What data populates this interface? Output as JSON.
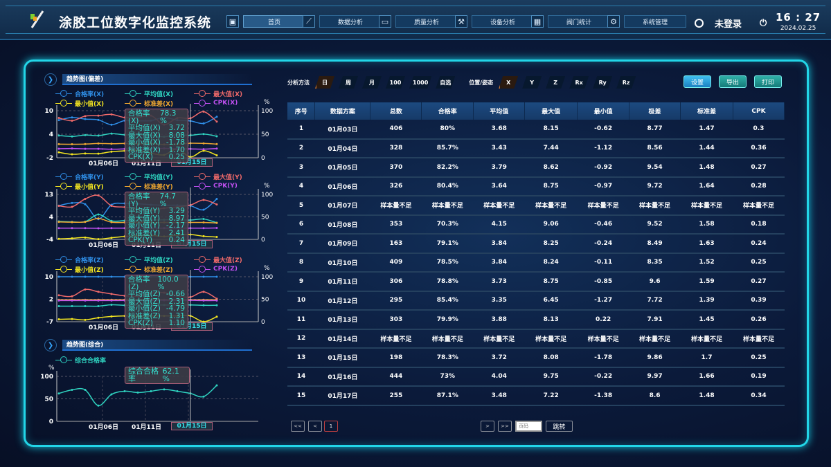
{
  "header": {
    "title": "涂胶工位数字化监控系统",
    "nav": [
      {
        "label": "首页",
        "icon": "dashboard-icon",
        "active": true
      },
      {
        "label": "数据分析",
        "icon": "line-chart-icon"
      },
      {
        "label": "质量分析",
        "icon": "monitor-icon"
      },
      {
        "label": "设备分析",
        "icon": "robot-arm-icon"
      },
      {
        "label": "阀门统计",
        "icon": "calculator-icon"
      },
      {
        "label": "系统管理",
        "icon": "gear-icon"
      }
    ],
    "user": "未登录",
    "time": "16 : 27",
    "date": "2024.02.25"
  },
  "colors": {
    "accent": "#22d6e8",
    "rate": "#2f8fe8",
    "avg": "#2fd3c0",
    "max": "#f06a6a",
    "min": "#f5e620",
    "std": "#f0a830",
    "cpk": "#c050f0"
  },
  "left": {
    "trend_title": "趋势图(偏差)",
    "combined_title": "趋势图(综合)"
  },
  "chart_data": [
    {
      "type": "line",
      "axis": "X",
      "ylim": [
        -2,
        10
      ],
      "yticks": [
        "10",
        "4",
        "-2"
      ],
      "y2lim": [
        0,
        100
      ],
      "y2ticks": [
        "100",
        "50",
        "0"
      ],
      "y2label": "%",
      "x": [
        "01月03日",
        "01月04日",
        "01月05日",
        "01月06日",
        "01月08日",
        "01月09日",
        "01月10日",
        "01月11日",
        "01月12日",
        "01月13日",
        "01月15日",
        "01月16日",
        "01月17日"
      ],
      "xticks": [
        "01月06日",
        "01月11日",
        "01月15日"
      ],
      "highlight": "01月15日",
      "series": [
        {
          "name": "合格率(X)",
          "key": "rate",
          "axis": "right",
          "values": [
            80,
            85.7,
            82.2,
            80.4,
            70.3,
            79.1,
            78.5,
            78.8,
            85.4,
            79.9,
            78.3,
            73,
            87.1
          ]
        },
        {
          "name": "平均值(X)",
          "key": "avg",
          "values": [
            3.68,
            3.43,
            3.79,
            3.64,
            4.15,
            3.84,
            3.84,
            3.73,
            3.35,
            3.88,
            3.72,
            4.04,
            3.48
          ]
        },
        {
          "name": "最大值(X)",
          "key": "max",
          "values": [
            8.15,
            7.44,
            8.62,
            8.75,
            9.06,
            8.25,
            8.24,
            8.75,
            6.45,
            8.13,
            8.08,
            9.75,
            7.22
          ]
        },
        {
          "name": "最小值(X)",
          "key": "min",
          "values": [
            -0.62,
            -1.12,
            -0.92,
            -0.97,
            -0.46,
            -0.24,
            -0.11,
            -0.85,
            -1.27,
            0.22,
            -1.78,
            -0.22,
            -1.38
          ]
        },
        {
          "name": "标准差(X)",
          "key": "std",
          "values": [
            1.47,
            1.44,
            1.48,
            1.64,
            1.58,
            1.63,
            1.52,
            1.59,
            1.39,
            1.45,
            1.7,
            1.66,
            1.48
          ]
        },
        {
          "name": "CPK(X)",
          "key": "cpk",
          "values": [
            0.3,
            0.36,
            0.27,
            0.28,
            0.18,
            0.24,
            0.25,
            0.27,
            0.39,
            0.26,
            0.25,
            0.19,
            0.34
          ]
        }
      ],
      "tooltip": [
        [
          "合格率(X)",
          "78.3 %"
        ],
        [
          "平均值(X)",
          "3.72"
        ],
        [
          "最大值(X)",
          "8.08"
        ],
        [
          "最小值(X)",
          "-1.78"
        ],
        [
          "标准差(X)",
          "1.70"
        ],
        [
          "CPK(X)",
          "0.25"
        ]
      ]
    },
    {
      "type": "line",
      "axis": "Y",
      "ylim": [
        -4,
        13
      ],
      "yticks": [
        "13",
        "4",
        "-4"
      ],
      "y2lim": [
        0,
        100
      ],
      "y2ticks": [
        "100",
        "50",
        "0"
      ],
      "y2label": "%",
      "x": [
        "01月03日",
        "01月04日",
        "01月05日",
        "01月06日",
        "01月08日",
        "01月09日",
        "01月10日",
        "01月11日",
        "01月12日",
        "01月13日",
        "01月15日",
        "01月16日",
        "01月17日"
      ],
      "xticks": [
        "01月06日",
        "01月11日",
        "01月15日"
      ],
      "highlight": "01月15日",
      "series": [
        {
          "name": "合格率(Y)",
          "key": "rate",
          "axis": "right",
          "values": [
            75,
            81,
            78,
            45,
            77,
            80,
            79,
            77,
            76,
            76,
            74.7,
            66,
            90
          ]
        },
        {
          "name": "平均值(Y)",
          "key": "avg",
          "values": [
            2.8,
            2.6,
            2.7,
            5.4,
            3.0,
            3.1,
            3.2,
            3.3,
            3.4,
            3.4,
            3.29,
            3.7,
            2.3
          ]
        },
        {
          "name": "最大值(Y)",
          "key": "max",
          "values": [
            8.7,
            8.3,
            11.3,
            12.6,
            8.7,
            8.2,
            7.5,
            7.0,
            7.8,
            8.3,
            8.97,
            10.9,
            9.2
          ]
        },
        {
          "name": "最小值(Y)",
          "key": "min",
          "values": [
            -3.8,
            -3.6,
            -3.3,
            -3.9,
            -3.4,
            -2.9,
            -2.6,
            -2.5,
            -2.9,
            -2.4,
            -2.17,
            -2.8,
            -3.1
          ]
        },
        {
          "name": "标准差(Y)",
          "key": "std",
          "values": [
            2.6,
            2.5,
            2.6,
            3.9,
            2.5,
            2.4,
            2.5,
            2.4,
            2.4,
            2.4,
            2.41,
            2.4,
            2.2
          ]
        },
        {
          "name": "CPK(Y)",
          "key": "cpk",
          "values": [
            0.24,
            0.24,
            0.24,
            0.2,
            0.24,
            0.24,
            0.24,
            0.24,
            0.24,
            0.24,
            0.24,
            0.24,
            0.3
          ]
        }
      ],
      "tooltip": [
        [
          "合格率(Y)",
          "74.7 %"
        ],
        [
          "平均值(Y)",
          "3.29"
        ],
        [
          "最大值(Y)",
          "8.97"
        ],
        [
          "最小值(Y)",
          "-2.17"
        ],
        [
          "标准差(Y)",
          "2.41"
        ],
        [
          "CPK(Y)",
          "0.24"
        ]
      ]
    },
    {
      "type": "line",
      "axis": "Z",
      "ylim": [
        -7,
        10
      ],
      "yticks": [
        "10",
        "2",
        "-7"
      ],
      "y2lim": [
        0,
        100
      ],
      "y2ticks": [
        "100",
        "50",
        "0"
      ],
      "y2label": "%",
      "x": [
        "01月03日",
        "01月04日",
        "01月05日",
        "01月06日",
        "01月08日",
        "01月09日",
        "01月10日",
        "01月11日",
        "01月12日",
        "01月13日",
        "01月15日",
        "01月16日",
        "01月17日"
      ],
      "xticks": [
        "01月06日",
        "01月11日",
        "01月15日"
      ],
      "highlight": "01月15日",
      "series": [
        {
          "name": "合格率(Z)",
          "key": "rate",
          "axis": "right",
          "values": [
            100,
            100,
            100,
            100,
            100,
            100,
            100,
            100,
            100,
            100,
            100,
            100,
            100
          ]
        },
        {
          "name": "平均值(Z)",
          "key": "avg",
          "values": [
            -1.1,
            -1.1,
            -1.1,
            -1.1,
            -0.6,
            -0.8,
            -0.7,
            -0.7,
            -0.7,
            -0.7,
            -0.66,
            -0.8,
            -0.8
          ]
        },
        {
          "name": "最大值(Z)",
          "key": "max",
          "values": [
            3.0,
            2.6,
            5.2,
            4.3,
            3.5,
            2.8,
            2.6,
            3.8,
            4.0,
            2.8,
            2.31,
            4.3,
            1.7
          ]
        },
        {
          "name": "最小值(Z)",
          "key": "min",
          "values": [
            -6.1,
            -6.0,
            -6.3,
            -5.5,
            -5.0,
            -4.8,
            -4.9,
            -4.8,
            -4.8,
            -4.8,
            -4.79,
            -7.0,
            -5.1
          ]
        },
        {
          "name": "标准差(Z)",
          "key": "std",
          "values": [
            1.3,
            1.3,
            1.3,
            1.3,
            1.3,
            1.3,
            1.3,
            1.3,
            1.3,
            1.3,
            1.31,
            1.3,
            1.3
          ]
        },
        {
          "name": "CPK(Z)",
          "key": "cpk",
          "values": [
            1.0,
            1.0,
            1.0,
            1.0,
            1.0,
            1.05,
            1.05,
            1.1,
            1.1,
            1.1,
            1.1,
            1.0,
            1.0
          ]
        }
      ],
      "tooltip": [
        [
          "合格率(Z)",
          "100.0 %"
        ],
        [
          "平均值(Z)",
          "-0.66"
        ],
        [
          "最大值(Z)",
          "2.31"
        ],
        [
          "最小值(Z)",
          "-4.79"
        ],
        [
          "标准差(Z)",
          "1.31"
        ],
        [
          "CPK(Z)",
          "1.10"
        ]
      ]
    },
    {
      "type": "line",
      "axis": "综合",
      "ylim": [
        0,
        100
      ],
      "yticks": [
        "100",
        "50",
        "0"
      ],
      "ylabel": "%",
      "x": [
        "01月03日",
        "01月04日",
        "01月05日",
        "01月06日",
        "01月08日",
        "01月09日",
        "01月10日",
        "01月11日",
        "01月12日",
        "01月13日",
        "01月15日",
        "01月16日",
        "01月17日"
      ],
      "xticks": [
        "01月06日",
        "01月11日",
        "01月15日"
      ],
      "highlight": "01月15日",
      "series": [
        {
          "name": "综合合格率",
          "key": "avg",
          "values": [
            62,
            70,
            70,
            35,
            60,
            67,
            64,
            67,
            71,
            67,
            62.1,
            55,
            80
          ]
        }
      ],
      "tooltip": [
        [
          "综合合格率",
          "62.1 %"
        ]
      ]
    }
  ],
  "filters": {
    "method_label": "分析方法",
    "methods": [
      "日",
      "周",
      "月",
      "100",
      "1000",
      "自选"
    ],
    "method_selected": "日",
    "pos_label": "位置/姿态",
    "positions": [
      "X",
      "Y",
      "Z",
      "Rx",
      "Ry",
      "Rz"
    ],
    "pos_selected": "X"
  },
  "actions": {
    "settings": "设置",
    "export": "导出",
    "print": "打印"
  },
  "table": {
    "columns": [
      "序号",
      "数据方案",
      "总数",
      "合格率",
      "平均值",
      "最大值",
      "最小值",
      "极差",
      "标准差",
      "CPK"
    ],
    "rows": [
      [
        "1",
        "01月03日",
        "406",
        "80%",
        "3.68",
        "8.15",
        "-0.62",
        "8.77",
        "1.47",
        "0.3"
      ],
      [
        "2",
        "01月04日",
        "328",
        "85.7%",
        "3.43",
        "7.44",
        "-1.12",
        "8.56",
        "1.44",
        "0.36"
      ],
      [
        "3",
        "01月05日",
        "370",
        "82.2%",
        "3.79",
        "8.62",
        "-0.92",
        "9.54",
        "1.48",
        "0.27"
      ],
      [
        "4",
        "01月06日",
        "326",
        "80.4%",
        "3.64",
        "8.75",
        "-0.97",
        "9.72",
        "1.64",
        "0.28"
      ],
      [
        "5",
        "01月07日",
        "样本量不足",
        "样本量不足",
        "样本量不足",
        "样本量不足",
        "样本量不足",
        "样本量不足",
        "样本量不足",
        "样本量不足"
      ],
      [
        "6",
        "01月08日",
        "353",
        "70.3%",
        "4.15",
        "9.06",
        "-0.46",
        "9.52",
        "1.58",
        "0.18"
      ],
      [
        "7",
        "01月09日",
        "163",
        "79.1%",
        "3.84",
        "8.25",
        "-0.24",
        "8.49",
        "1.63",
        "0.24"
      ],
      [
        "8",
        "01月10日",
        "409",
        "78.5%",
        "3.84",
        "8.24",
        "-0.11",
        "8.35",
        "1.52",
        "0.25"
      ],
      [
        "9",
        "01月11日",
        "306",
        "78.8%",
        "3.73",
        "8.75",
        "-0.85",
        "9.6",
        "1.59",
        "0.27"
      ],
      [
        "10",
        "01月12日",
        "295",
        "85.4%",
        "3.35",
        "6.45",
        "-1.27",
        "7.72",
        "1.39",
        "0.39"
      ],
      [
        "11",
        "01月13日",
        "303",
        "79.9%",
        "3.88",
        "8.13",
        "0.22",
        "7.91",
        "1.45",
        "0.26"
      ],
      [
        "12",
        "01月14日",
        "样本量不足",
        "样本量不足",
        "样本量不足",
        "样本量不足",
        "样本量不足",
        "样本量不足",
        "样本量不足",
        "样本量不足"
      ],
      [
        "13",
        "01月15日",
        "198",
        "78.3%",
        "3.72",
        "8.08",
        "-1.78",
        "9.86",
        "1.7",
        "0.25"
      ],
      [
        "14",
        "01月16日",
        "444",
        "73%",
        "4.04",
        "9.75",
        "-0.22",
        "9.97",
        "1.66",
        "0.19"
      ],
      [
        "15",
        "01月17日",
        "255",
        "87.1%",
        "3.48",
        "7.22",
        "-1.38",
        "8.6",
        "1.48",
        "0.34"
      ]
    ]
  },
  "pagination": {
    "first": "<<",
    "prev": "<",
    "current": "1",
    "next": ">",
    "last": ">>",
    "page_placeholder": "页码",
    "jump": "跳转"
  }
}
